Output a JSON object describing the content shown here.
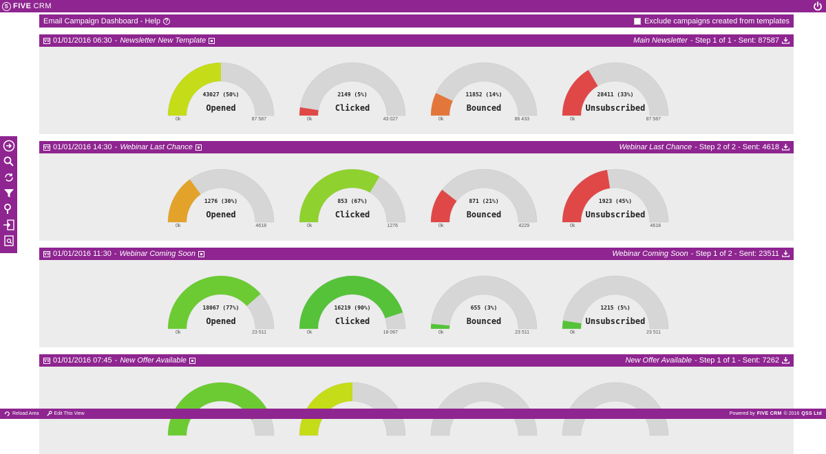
{
  "app": {
    "logo_text": "FIVE",
    "logo_text2": "CRM",
    "logo_letter": "S"
  },
  "header": {
    "title": "Email Campaign Dashboard - Help",
    "help_icon": "question-icon",
    "exclude_label": "Exclude campaigns created from templates",
    "exclude_checked": false
  },
  "campaigns": [
    {
      "date": "01/01/2016 06:30",
      "sep": " - ",
      "name": "Newsletter New Template",
      "right_name": "Main Newsletter",
      "right_step": " - Step 1 of 1 - Sent: 87587",
      "gauges": [
        {
          "label": "Opened",
          "value_text": "43027 (50%)",
          "fraction": 0.5,
          "min": "0k",
          "max": "87 587",
          "color": "#c5dc18"
        },
        {
          "label": "Clicked",
          "value_text": "2149 (5%)",
          "fraction": 0.05,
          "min": "0k",
          "max": "43 027",
          "color": "#e04848"
        },
        {
          "label": "Bounced",
          "value_text": "11852 (14%)",
          "fraction": 0.14,
          "min": "0k",
          "max": "86 433",
          "color": "#e3773b"
        },
        {
          "label": "Unsubscribed",
          "value_text": "28411 (33%)",
          "fraction": 0.33,
          "min": "0k",
          "max": "87 587",
          "color": "#e04848"
        }
      ]
    },
    {
      "date": "01/01/2016 14:30",
      "sep": " - ",
      "name": "Webinar Last Chance",
      "right_name": "Webinar Last Chance",
      "right_step": " - Step 2 of 2 - Sent: 4618",
      "gauges": [
        {
          "label": "Opened",
          "value_text": "1276 (30%)",
          "fraction": 0.3,
          "min": "0k",
          "max": "4618",
          "color": "#e3a32a"
        },
        {
          "label": "Clicked",
          "value_text": "853 (67%)",
          "fraction": 0.67,
          "min": "0k",
          "max": "1276",
          "color": "#8fd12e"
        },
        {
          "label": "Bounced",
          "value_text": "871 (21%)",
          "fraction": 0.21,
          "min": "0k",
          "max": "4229",
          "color": "#e04848"
        },
        {
          "label": "Unsubscribed",
          "value_text": "1923 (45%)",
          "fraction": 0.45,
          "min": "0k",
          "max": "4618",
          "color": "#e04848"
        }
      ]
    },
    {
      "date": "01/01/2016 11:30",
      "sep": " - ",
      "name": "Webinar Coming Soon",
      "right_name": "Webinar Coming Soon",
      "right_step": " - Step 1 of 2 - Sent: 23511",
      "gauges": [
        {
          "label": "Opened",
          "value_text": "18067 (77%)",
          "fraction": 0.77,
          "min": "0k",
          "max": "23 511",
          "color": "#6ccb33"
        },
        {
          "label": "Clicked",
          "value_text": "16219 (90%)",
          "fraction": 0.9,
          "min": "0k",
          "max": "18 067",
          "color": "#55c23a"
        },
        {
          "label": "Bounced",
          "value_text": "655 (3%)",
          "fraction": 0.03,
          "min": "0k",
          "max": "23 511",
          "color": "#55c23a"
        },
        {
          "label": "Unsubscribed",
          "value_text": "1215 (5%)",
          "fraction": 0.05,
          "min": "0k",
          "max": "23 511",
          "color": "#55c23a"
        }
      ]
    },
    {
      "date": "01/01/2016 07:45",
      "sep": " - ",
      "name": "New Offer Available",
      "right_name": "New Offer Available",
      "right_step": " - Step 1 of 1 - Sent: 7262",
      "gauges": [
        {
          "label": "",
          "value_text": "",
          "fraction": 0.85,
          "min": "",
          "max": "",
          "color": "#6ccb33"
        },
        {
          "label": "",
          "value_text": "",
          "fraction": 0.5,
          "min": "",
          "max": "",
          "color": "#c5dc18"
        },
        {
          "label": "",
          "value_text": "",
          "fraction": 0,
          "min": "",
          "max": "",
          "color": "#d6d6d6"
        },
        {
          "label": "",
          "value_text": "",
          "fraction": 0,
          "min": "",
          "max": "",
          "color": "#d6d6d6"
        }
      ]
    }
  ],
  "footer": {
    "reload": "Reload Area",
    "edit": "Edit This View",
    "powered": "Powered by",
    "brand": "FIVE CRM",
    "copyright": "© 2016",
    "company": "QSS Ltd"
  },
  "colors": {
    "brand": "#8e2590",
    "gauge_track": "#d6d6d6",
    "panel_bg": "#ececec"
  },
  "side_icons": [
    "arrow-right-circle-icon",
    "search-query-icon",
    "refresh-icon",
    "filter-icon",
    "search-off-icon",
    "import-icon",
    "document-search-icon"
  ]
}
